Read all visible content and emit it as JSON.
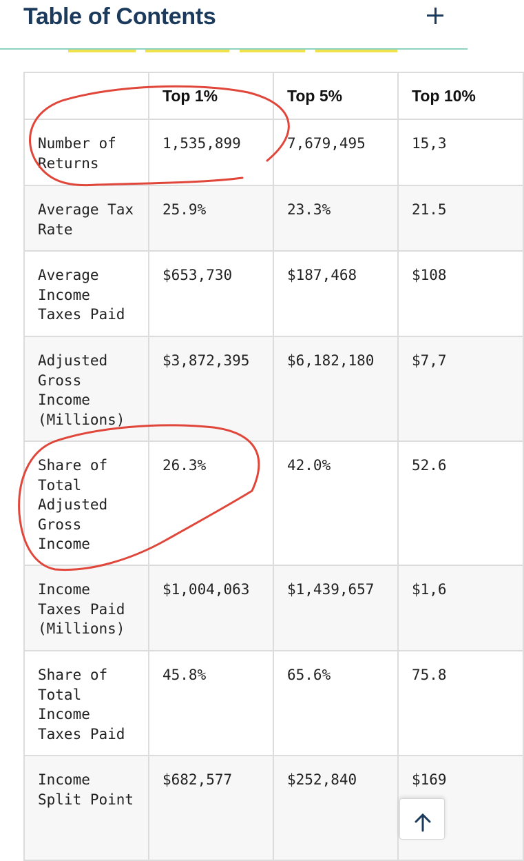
{
  "header": {
    "title": "Table of Contents"
  },
  "table": {
    "columns": [
      "",
      "Top 1%",
      "Top 5%",
      "Top 10%"
    ],
    "rows": [
      {
        "label": "Number of Returns",
        "values": [
          "1,535,899",
          "7,679,495",
          "15,3"
        ]
      },
      {
        "label": "Average Tax Rate",
        "values": [
          "25.9%",
          "23.3%",
          "21.5"
        ]
      },
      {
        "label": "Average Income Taxes Paid",
        "values": [
          "$653,730",
          "$187,468",
          "$108"
        ]
      },
      {
        "label": "Adjusted Gross Income (Millions)",
        "values": [
          "$3,872,395",
          "$6,182,180",
          "$7,7"
        ]
      },
      {
        "label": "Share of Total Adjusted Gross Income",
        "values": [
          "26.3%",
          "42.0%",
          "52.6"
        ]
      },
      {
        "label": "Income Taxes Paid (Millions)",
        "values": [
          "$1,004,063",
          "$1,439,657",
          "$1,6"
        ]
      },
      {
        "label": "Share of Total Income Taxes Paid",
        "values": [
          "45.8%",
          "65.6%",
          "75.8"
        ]
      },
      {
        "label": "Income Split Point",
        "values": [
          "$682,577",
          "$252,840",
          "$169"
        ]
      }
    ]
  },
  "colors": {
    "title": "#1b3a5c",
    "accent": "#f0e24a",
    "rule": "#8fd1bf",
    "annotation": "#e0463a"
  },
  "icons": {
    "expand": "plus-icon",
    "scroll_top": "arrow-up-icon"
  }
}
